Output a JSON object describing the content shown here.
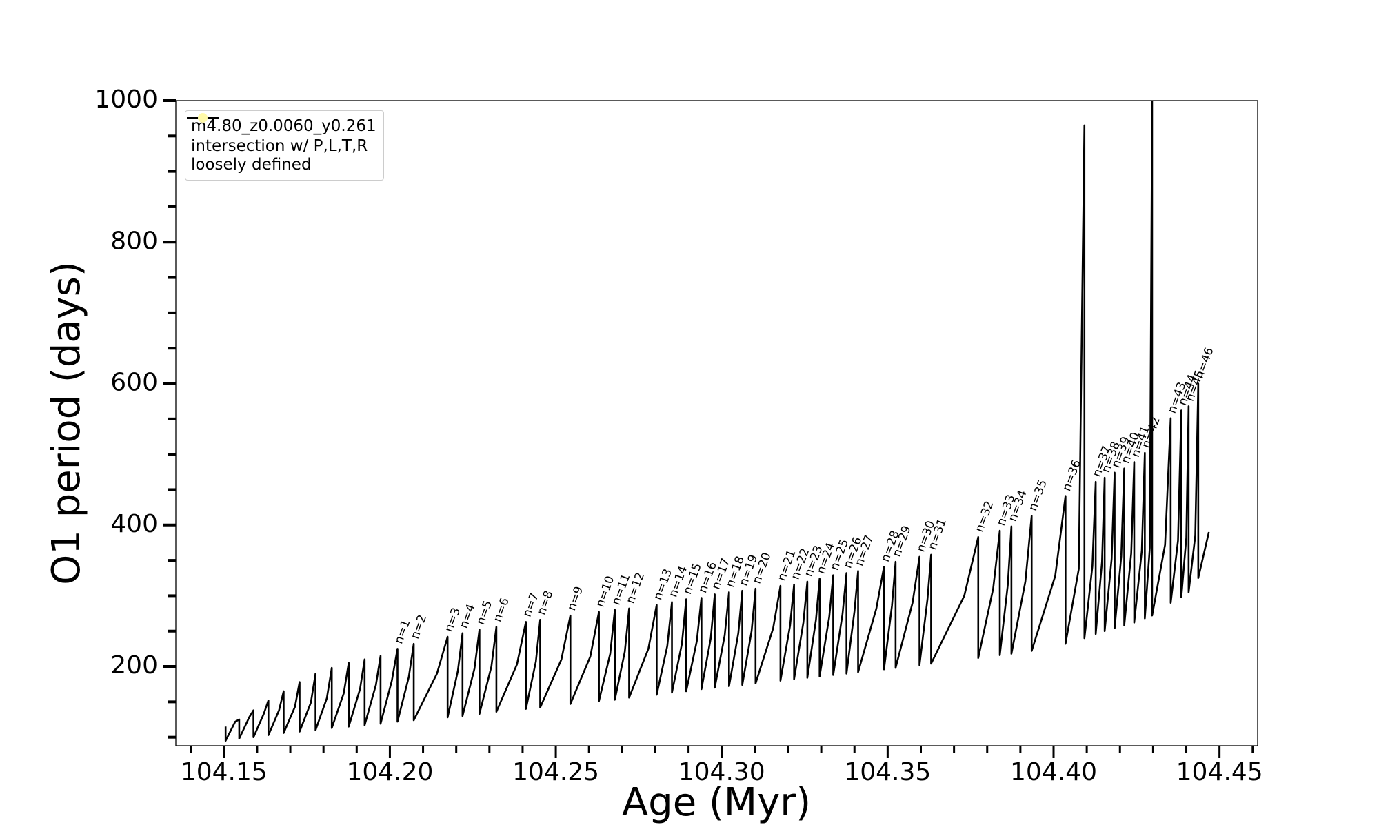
{
  "chart_data": {
    "type": "line",
    "xlabel": "Age (Myr)",
    "ylabel": "O1 period (days)",
    "xlim": [
      104.1355,
      104.4615
    ],
    "ylim": [
      88,
      1000
    ],
    "xticks": [
      104.15,
      {
        "value": 104.2,
        "label": "104.20"
      },
      104.25,
      {
        "value": 104.3,
        "label": "104.30"
      },
      104.35,
      {
        "value": 104.4,
        "label": "104.40"
      },
      104.45
    ],
    "xminorticks": [
      104.14,
      104.16,
      104.17,
      104.18,
      104.19,
      104.21,
      104.22,
      104.23,
      104.24,
      104.26,
      104.27,
      104.28,
      104.29,
      104.31,
      104.32,
      104.33,
      104.34,
      104.36,
      104.37,
      104.38,
      104.39,
      104.41,
      104.42,
      104.43,
      104.44,
      104.46
    ],
    "yticks": [
      200,
      400,
      600,
      800,
      1000
    ],
    "yminorticks": [
      100,
      150,
      250,
      300,
      350,
      450,
      500,
      550,
      650,
      700,
      750,
      850,
      900,
      950
    ],
    "grid": false,
    "legend": "upper left",
    "series": [
      {
        "name": "m4.80_z0.0060_y0.261",
        "color": "#000000",
        "x": [
          104.1505,
          104.1505,
          104.1534,
          104.1546,
          104.1546,
          104.1576,
          104.1589,
          104.1589,
          104.162,
          104.1634,
          104.1634,
          104.1666,
          104.168,
          104.168,
          104.1714,
          104.1728,
          104.1728,
          104.1762,
          104.1776,
          104.1776,
          104.181,
          104.1825,
          104.1825,
          104.1861,
          104.1876,
          104.1876,
          104.191,
          104.1924,
          104.1924,
          104.1958,
          104.1972,
          104.1972,
          104.2006,
          104.2023,
          104.2023,
          104.2057,
          104.2072,
          104.2072,
          104.2142,
          104.2174,
          104.2174,
          104.2205,
          104.2219,
          104.2219,
          104.2255,
          104.227,
          104.227,
          104.2306,
          104.2321,
          104.2321,
          104.2383,
          104.241,
          104.241,
          104.244,
          104.2453,
          104.2453,
          104.2517,
          104.2544,
          104.2544,
          104.2604,
          104.263,
          104.263,
          104.2664,
          104.2678,
          104.2678,
          104.2708,
          104.2721,
          104.2721,
          104.2779,
          104.2804,
          104.2804,
          104.2836,
          104.285,
          104.285,
          104.288,
          104.2893,
          104.2893,
          104.2925,
          104.2939,
          104.2939,
          104.2967,
          104.2979,
          104.2979,
          104.3009,
          104.3022,
          104.3022,
          104.305,
          104.3062,
          104.3062,
          104.309,
          104.3102,
          104.3102,
          104.3155,
          104.3177,
          104.3177,
          104.3206,
          104.3218,
          104.3218,
          104.3246,
          104.3258,
          104.3258,
          104.3284,
          104.3295,
          104.3295,
          104.3324,
          104.3336,
          104.3336,
          104.3364,
          104.3376,
          104.3376,
          104.34,
          104.3411,
          104.3411,
          104.3466,
          104.3489,
          104.3489,
          104.3513,
          104.3524,
          104.3524,
          104.3575,
          104.3596,
          104.3596,
          104.362,
          104.3631,
          104.3631,
          104.3731,
          104.3773,
          104.3773,
          104.3818,
          104.3838,
          104.3838,
          104.3862,
          104.3873,
          104.3873,
          104.3915,
          104.3934,
          104.3934,
          104.4005,
          104.4036,
          104.4036,
          104.4076,
          104.4093,
          104.4093,
          104.4117,
          104.4127,
          104.4127,
          104.4146,
          104.4154,
          104.4154,
          104.4175,
          104.4184,
          104.4184,
          104.4204,
          104.4213,
          104.4213,
          104.4234,
          104.4243,
          104.4243,
          104.4266,
          104.4275,
          104.4275,
          104.429,
          104.4297,
          104.4297,
          104.4336,
          104.4353,
          104.4353,
          104.4375,
          104.4385,
          104.4385,
          104.44,
          104.4407,
          104.4407,
          104.4427,
          104.4436,
          104.4436,
          104.4468
        ],
        "values": [
          115,
          95,
          122,
          125,
          98,
          128,
          138,
          100,
          133,
          152,
          103,
          138,
          165,
          106,
          143,
          178,
          108,
          149,
          190,
          110,
          155,
          198,
          113,
          162,
          205,
          115,
          168,
          210,
          117,
          174,
          215,
          119,
          180,
          225,
          122,
          185,
          232,
          124,
          190,
          242,
          128,
          194,
          247,
          130,
          197,
          252,
          133,
          200,
          256,
          136,
          203,
          263,
          140,
          207,
          266,
          142,
          210,
          272,
          147,
          214,
          277,
          151,
          218,
          280,
          153,
          221,
          282,
          156,
          225,
          287,
          160,
          229,
          291,
          163,
          232,
          295,
          165,
          236,
          297,
          168,
          240,
          302,
          170,
          244,
          305,
          172,
          247,
          307,
          174,
          250,
          310,
          176,
          254,
          314,
          180,
          258,
          316,
          182,
          262,
          320,
          184,
          266,
          324,
          186,
          270,
          329,
          188,
          274,
          332,
          190,
          278,
          335,
          192,
          282,
          341,
          196,
          286,
          348,
          198,
          290,
          355,
          202,
          295,
          358,
          204,
          300,
          383,
          212,
          310,
          392,
          216,
          315,
          398,
          218,
          320,
          413,
          222,
          328,
          441,
          232,
          338,
          965,
          240,
          342,
          461,
          246,
          348,
          467,
          250,
          352,
          474,
          254,
          356,
          480,
          258,
          360,
          489,
          262,
          364,
          502,
          268,
          368,
          1000,
          272,
          372,
          551,
          290,
          378,
          562,
          298,
          382,
          568,
          305,
          385,
          600,
          325,
          390
        ]
      },
      {
        "name": "intersection w/ P,L,T,R\nloosely defined",
        "color": "#fff9a8",
        "marker": "circle",
        "x": [],
        "values": []
      }
    ],
    "annotations": [
      {
        "text": "n=1",
        "x": 104.2023,
        "y": 225
      },
      {
        "text": "n=2",
        "x": 104.2072,
        "y": 232
      },
      {
        "text": "n=3",
        "x": 104.2174,
        "y": 242
      },
      {
        "text": "n=4",
        "x": 104.2219,
        "y": 247
      },
      {
        "text": "n=5",
        "x": 104.227,
        "y": 252
      },
      {
        "text": "n=6",
        "x": 104.2321,
        "y": 256
      },
      {
        "text": "n=7",
        "x": 104.241,
        "y": 263
      },
      {
        "text": "n=8",
        "x": 104.2453,
        "y": 266
      },
      {
        "text": "n=9",
        "x": 104.2544,
        "y": 272
      },
      {
        "text": "n=10",
        "x": 104.263,
        "y": 277
      },
      {
        "text": "n=11",
        "x": 104.2678,
        "y": 280
      },
      {
        "text": "n=12",
        "x": 104.2721,
        "y": 282
      },
      {
        "text": "n=13",
        "x": 104.2804,
        "y": 287
      },
      {
        "text": "n=14",
        "x": 104.285,
        "y": 291
      },
      {
        "text": "n=15",
        "x": 104.2893,
        "y": 295
      },
      {
        "text": "n=16",
        "x": 104.2939,
        "y": 297
      },
      {
        "text": "n=17",
        "x": 104.2979,
        "y": 302
      },
      {
        "text": "n=18",
        "x": 104.3022,
        "y": 305
      },
      {
        "text": "n=19",
        "x": 104.3062,
        "y": 307
      },
      {
        "text": "n=20",
        "x": 104.3102,
        "y": 310
      },
      {
        "text": "n=21",
        "x": 104.3177,
        "y": 314
      },
      {
        "text": "n=22",
        "x": 104.3218,
        "y": 316
      },
      {
        "text": "n=23",
        "x": 104.3258,
        "y": 320
      },
      {
        "text": "n=24",
        "x": 104.3295,
        "y": 324
      },
      {
        "text": "n=25",
        "x": 104.3336,
        "y": 329
      },
      {
        "text": "n=26",
        "x": 104.3376,
        "y": 332
      },
      {
        "text": "n=27",
        "x": 104.3411,
        "y": 335
      },
      {
        "text": "n=28",
        "x": 104.3489,
        "y": 341
      },
      {
        "text": "n=29",
        "x": 104.3524,
        "y": 348
      },
      {
        "text": "n=30",
        "x": 104.3596,
        "y": 355
      },
      {
        "text": "n=31",
        "x": 104.3631,
        "y": 358
      },
      {
        "text": "n=32",
        "x": 104.3773,
        "y": 383
      },
      {
        "text": "n=33",
        "x": 104.3838,
        "y": 392
      },
      {
        "text": "n=34",
        "x": 104.3873,
        "y": 398
      },
      {
        "text": "n=35",
        "x": 104.3934,
        "y": 413
      },
      {
        "text": "n=36",
        "x": 104.4036,
        "y": 441
      },
      {
        "text": "n=37",
        "x": 104.4127,
        "y": 461
      },
      {
        "text": "n=38",
        "x": 104.4154,
        "y": 467
      },
      {
        "text": "n=39",
        "x": 104.4184,
        "y": 474
      },
      {
        "text": "n=40",
        "x": 104.4213,
        "y": 480
      },
      {
        "text": "n=41",
        "x": 104.4243,
        "y": 489
      },
      {
        "text": "n=42",
        "x": 104.4275,
        "y": 502
      },
      {
        "text": "n=43",
        "x": 104.4353,
        "y": 551
      },
      {
        "text": "n=44",
        "x": 104.4385,
        "y": 562
      },
      {
        "text": "n=45",
        "x": 104.4407,
        "y": 568
      },
      {
        "text": "n=46",
        "x": 104.4436,
        "y": 600
      }
    ]
  }
}
